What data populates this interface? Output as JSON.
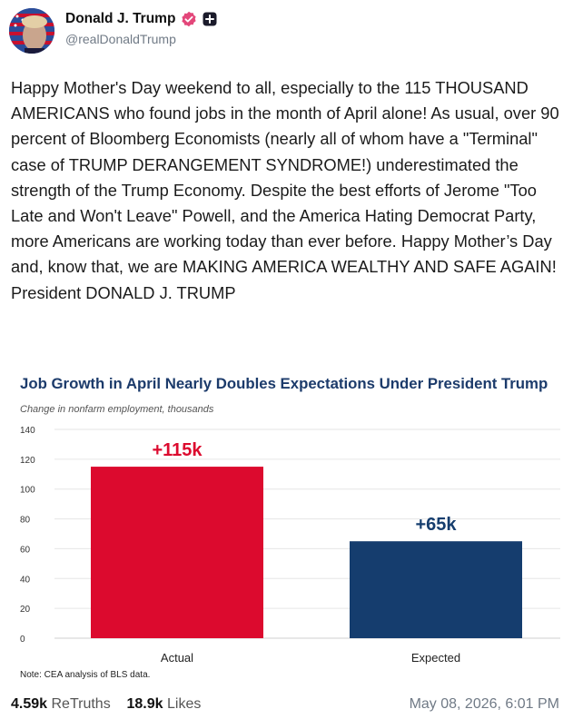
{
  "post": {
    "author": {
      "display_name": "Donald J. Trump",
      "handle": "@realDonaldTrump",
      "verified_badge": "verified-badge-icon",
      "extra_badge": "plus-badge-icon"
    },
    "text": "Happy Mother's Day weekend to all, especially to the 115 THOUSAND AMERICANS who found jobs in the month of April alone! As usual, over 90 percent of Bloomberg Economists (nearly all of whom have a \"Terminal\" case of TRUMP DERANGEMENT SYNDROME!) underestimated the strength of the Trump Economy. Despite the best efforts of Jerome \"Too Late and Won't Leave\" Powell, and the America Hating Democrat Party, more Americans are working today than ever before. Happy Mother’s Day and, know that, we are MAKING AMERICA WEALTHY AND SAFE AGAIN! President DONALD J. TRUMP"
  },
  "chart_data": {
    "type": "bar",
    "title": "Job Growth in April Nearly Doubles Expectations Under President Trump",
    "subtitle": "Change in nonfarm employment, thousands",
    "categories": [
      "Actual",
      "Expected"
    ],
    "values": [
      115,
      65
    ],
    "data_labels": [
      "+115k",
      "+65k"
    ],
    "bar_colors": [
      "#dc0a2e",
      "#153d6e"
    ],
    "label_colors": [
      "#dc0a2e",
      "#153d6e"
    ],
    "ylim": [
      0,
      140
    ],
    "yticks": [
      "0",
      "20",
      "40",
      "60",
      "80",
      "100",
      "120",
      "140"
    ],
    "grid": true,
    "note": "Note: CEA analysis of BLS data."
  },
  "footer": {
    "retruths_count": "4.59k",
    "retruths_label": "ReTruths",
    "likes_count": "18.9k",
    "likes_label": "Likes",
    "timestamp": "May 08, 2026, 6:01 PM"
  }
}
